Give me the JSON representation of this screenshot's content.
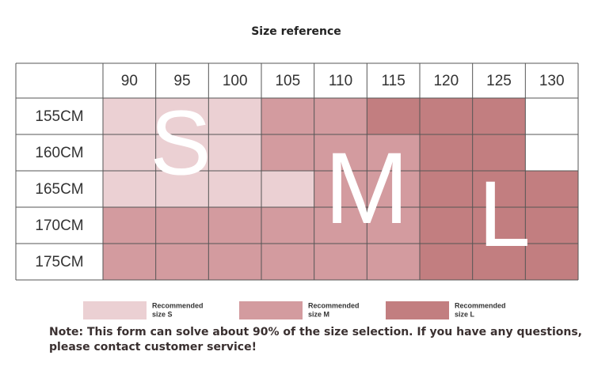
{
  "title": "Size reference",
  "table": {
    "columns": [
      90,
      95,
      100,
      105,
      110,
      115,
      120,
      125,
      130
    ],
    "rows": [
      {
        "label": "155CM",
        "colors": [
          "#ebd0d3",
          "#ebd0d3",
          "#ebd0d3",
          "#d39b9f",
          "#d39b9f",
          "#c27e80",
          "#c27e80",
          "#c27e80",
          "#ffffff"
        ]
      },
      {
        "label": "160CM",
        "colors": [
          "#ebd0d3",
          "#ebd0d3",
          "#ebd0d3",
          "#d39b9f",
          "#d39b9f",
          "#d39b9f",
          "#c27e80",
          "#c27e80",
          "#ffffff"
        ]
      },
      {
        "label": "165CM",
        "colors": [
          "#ebd0d3",
          "#ebd0d3",
          "#ebd0d3",
          "#ebd0d3",
          "#d39b9f",
          "#d39b9f",
          "#c27e80",
          "#c27e80",
          "#c27e80"
        ]
      },
      {
        "label": "170CM",
        "colors": [
          "#d39b9f",
          "#d39b9f",
          "#d39b9f",
          "#d39b9f",
          "#d39b9f",
          "#d39b9f",
          "#c27e80",
          "#c27e80",
          "#c27e80"
        ]
      },
      {
        "label": "175CM",
        "colors": [
          "#d39b9f",
          "#d39b9f",
          "#d39b9f",
          "#d39b9f",
          "#d39b9f",
          "#d39b9f",
          "#c27e80",
          "#c27e80",
          "#c27e80"
        ]
      }
    ]
  },
  "overlay_letters": [
    "S",
    "M",
    "L"
  ],
  "legend": [
    {
      "lines": [
        "Recommended",
        "size S"
      ],
      "color": "#ebd0d3"
    },
    {
      "lines": [
        "Recommended",
        "size M"
      ],
      "color": "#d39b9f"
    },
    {
      "lines": [
        "Recommended",
        "size L"
      ],
      "color": "#c27e80"
    }
  ],
  "note": "Note: This form can solve about 90% of the size selection. If you have any questions, please contact customer service!"
}
